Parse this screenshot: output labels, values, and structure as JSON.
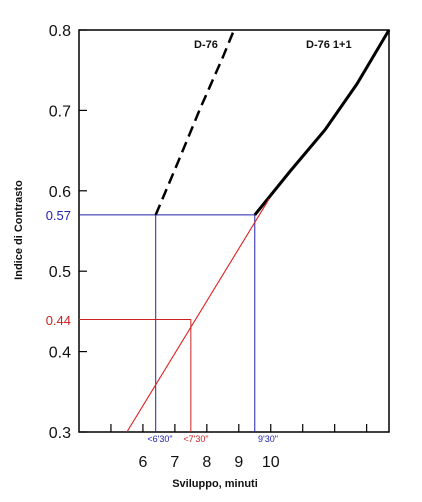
{
  "chart_data": {
    "type": "line",
    "xlabel": "Sviluppo, minuti",
    "ylabel": "Indice di Contrasto",
    "x_ticks": [
      6,
      7,
      8,
      9,
      10
    ],
    "y_ticks": [
      0.3,
      0.4,
      0.5,
      0.6,
      0.7,
      0.8
    ],
    "y_tick_labels": [
      "0.3",
      "0.4",
      "0.5",
      "0.6",
      "0.7",
      "0.8"
    ],
    "xlim": [
      4,
      13.7
    ],
    "ylim": [
      0.3,
      0.8
    ],
    "grid": false,
    "series": [
      {
        "name": "D-76",
        "style": "dashed",
        "color": "#000000",
        "points": [
          [
            6.4,
            0.57
          ],
          [
            7.1,
            0.636
          ],
          [
            7.8,
            0.703
          ],
          [
            8.5,
            0.766
          ],
          [
            8.85,
            0.8
          ]
        ]
      },
      {
        "name": "D-76 1+1",
        "style": "solid",
        "color": "#000000",
        "points": [
          [
            9.5,
            0.57
          ],
          [
            10.6,
            0.624
          ],
          [
            11.7,
            0.676
          ],
          [
            12.7,
            0.733
          ],
          [
            13.7,
            0.8
          ]
        ]
      },
      {
        "name": "",
        "style": "thin",
        "color": "#e02020",
        "points": [
          [
            5.5,
            0.3
          ],
          [
            9.95,
            0.59
          ]
        ]
      }
    ],
    "annotations": [
      {
        "label": "0.57",
        "y": 0.57,
        "color": "#2222aa",
        "x_left": 6.4,
        "x_right": 9.5
      },
      {
        "label": "0.44",
        "y": 0.44,
        "color": "#cc2222",
        "x": 7.5
      },
      {
        "label": "<6'30\"",
        "x": 6.5,
        "color": "#2222aa"
      },
      {
        "label": "<7'30\"",
        "x": 7.5,
        "color": "#cc2222"
      },
      {
        "label": "9'30\"",
        "x": 9.5,
        "color": "#2222aa"
      }
    ]
  }
}
